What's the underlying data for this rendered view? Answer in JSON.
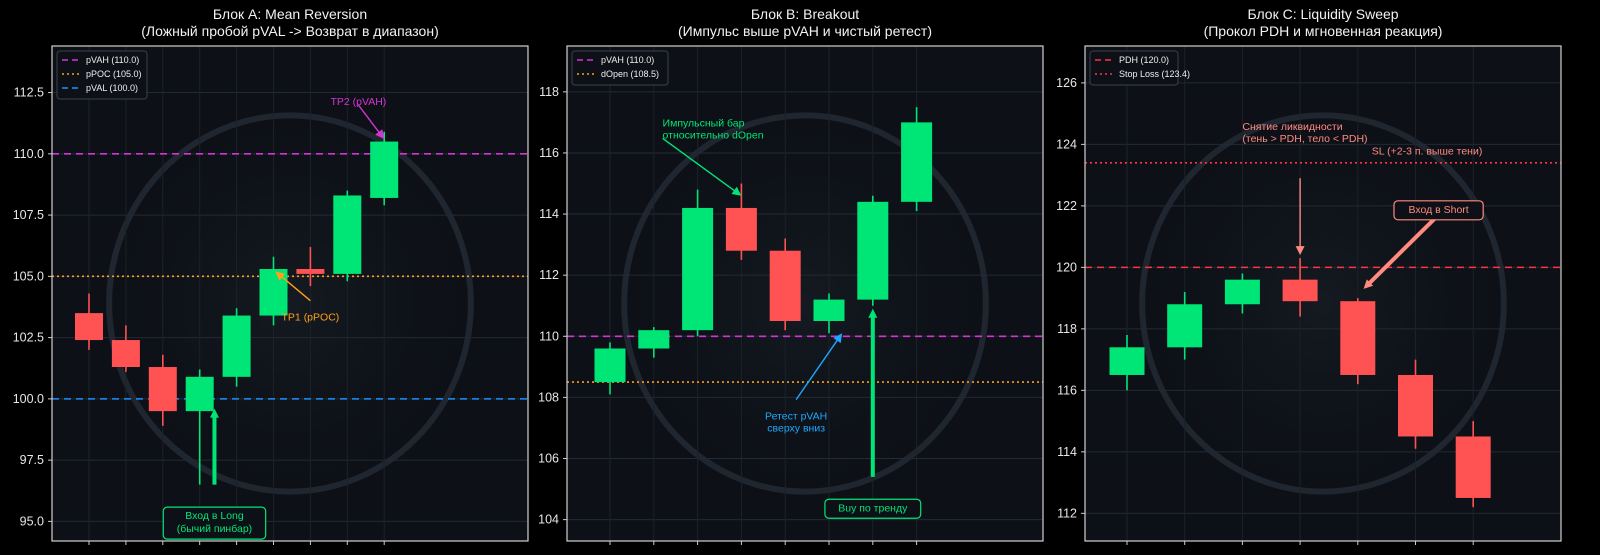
{
  "colors": {
    "up": "#00e676",
    "down": "#ff5252",
    "magenta": "#d633d6",
    "orange": "#ff9f1a",
    "blue": "#1e90ff",
    "red_level": "#ff3344",
    "plot_bg": "#0d1117"
  },
  "chart_data": [
    {
      "type": "candlestick",
      "title": "Блок A: Mean Reversion",
      "subtitle": "(Ложный пробой pVAL -> Возврат в диапазон)",
      "ylim": [
        94.2,
        114.4
      ],
      "yticks": [
        95.0,
        97.5,
        100.0,
        102.5,
        105.0,
        107.5,
        110.0,
        112.5
      ],
      "ytick_labels": [
        "95.0",
        "97.5",
        "100.0",
        "102.5",
        "105.0",
        "107.5",
        "110.0",
        "112.5"
      ],
      "grid": true,
      "legend_position": "top-left",
      "levels": [
        {
          "name": "pVAH (110.0)",
          "value": 110.0,
          "color": "#d633d6",
          "style": "dashed"
        },
        {
          "name": "pPOC (105.0)",
          "value": 105.0,
          "color": "#ff9f1a",
          "style": "dotted"
        },
        {
          "name": "pVAL (100.0)",
          "value": 100.0,
          "color": "#1e90ff",
          "style": "dashed"
        }
      ],
      "candles": [
        {
          "open": 103.5,
          "high": 104.3,
          "low": 102.0,
          "close": 102.4
        },
        {
          "open": 102.4,
          "high": 103.0,
          "low": 101.1,
          "close": 101.3
        },
        {
          "open": 101.3,
          "high": 101.8,
          "low": 98.9,
          "close": 99.5
        },
        {
          "open": 99.5,
          "high": 101.2,
          "low": 96.5,
          "close": 100.9
        },
        {
          "open": 100.9,
          "high": 103.7,
          "low": 100.5,
          "close": 103.4
        },
        {
          "open": 103.4,
          "high": 105.8,
          "low": 103.0,
          "close": 105.3
        },
        {
          "open": 105.3,
          "high": 106.2,
          "low": 104.6,
          "close": 105.1
        },
        {
          "open": 105.1,
          "high": 108.5,
          "low": 104.8,
          "close": 108.3
        },
        {
          "open": 108.2,
          "high": 110.9,
          "low": 107.9,
          "close": 110.5
        }
      ],
      "annotations": [
        {
          "id": "tp2",
          "text": [
            "TP2 (pVAH)"
          ],
          "color": "#d633d6",
          "text_x": 7.3,
          "text_y": 112.4,
          "arrow_to": [
            8.0,
            110.6
          ],
          "boxed": false
        },
        {
          "id": "tp1",
          "text": [
            "TP1 (pPOC)"
          ],
          "color": "#ff9f1a",
          "text_x": 6.0,
          "text_y": 103.6,
          "arrow_to": [
            5.05,
            105.2
          ],
          "boxed": false
        },
        {
          "id": "long",
          "text": [
            "Вход в Long",
            "(бычий пинбар)"
          ],
          "color": "#00e676",
          "text_x": 3.4,
          "text_y": 95.5,
          "arrow_from": [
            3.4,
            96.5
          ],
          "arrow_to": [
            3.4,
            99.6
          ],
          "boxed": true
        }
      ]
    },
    {
      "type": "candlestick",
      "title": "Блок B: Breakout",
      "subtitle": "(Импульс выше pVAH и чистый ретест)",
      "ylim": [
        103.3,
        119.5
      ],
      "yticks": [
        104,
        106,
        108,
        110,
        112,
        114,
        116,
        118
      ],
      "ytick_labels": [
        "104",
        "106",
        "108",
        "110",
        "112",
        "114",
        "116",
        "118"
      ],
      "grid": true,
      "legend_position": "top-left",
      "levels": [
        {
          "name": "pVAH (110.0)",
          "value": 110.0,
          "color": "#d633d6",
          "style": "dashed"
        },
        {
          "name": "dOpen (108.5)",
          "value": 108.5,
          "color": "#ff9f1a",
          "style": "dotted"
        }
      ],
      "candles": [
        {
          "open": 108.5,
          "high": 109.8,
          "low": 108.1,
          "close": 109.6
        },
        {
          "open": 109.6,
          "high": 110.3,
          "low": 109.3,
          "close": 110.2
        },
        {
          "open": 110.2,
          "high": 114.8,
          "low": 110.0,
          "close": 114.2
        },
        {
          "open": 114.2,
          "high": 115.0,
          "low": 112.5,
          "close": 112.8
        },
        {
          "open": 112.8,
          "high": 113.2,
          "low": 110.2,
          "close": 110.5
        },
        {
          "open": 110.5,
          "high": 111.4,
          "low": 110.1,
          "close": 111.2
        },
        {
          "open": 111.2,
          "high": 114.6,
          "low": 111.0,
          "close": 114.4
        },
        {
          "open": 114.4,
          "high": 117.5,
          "low": 114.1,
          "close": 117.0
        }
      ],
      "annotations": [
        {
          "id": "impulse",
          "text": [
            "Импульсный бар",
            "относительно dOpen"
          ],
          "color": "#00e676",
          "text_x": 1.2,
          "text_y": 117.2,
          "arrow_to": [
            3.0,
            114.6
          ],
          "boxed": false
        },
        {
          "id": "retest",
          "text": [
            "Ретест pVAH",
            "сверху вниз"
          ],
          "color": "#1ea7ff",
          "text_x": 4.25,
          "text_y": 107.6,
          "arrow_to": [
            5.3,
            110.1
          ],
          "boxed": false
        },
        {
          "id": "buy",
          "text": [
            "Buy по тренду"
          ],
          "color": "#00e676",
          "text_x": 6.0,
          "text_y": 104.6,
          "arrow_from": [
            6.0,
            105.4
          ],
          "arrow_to": [
            6.0,
            110.9
          ],
          "boxed": true
        }
      ]
    },
    {
      "type": "candlestick",
      "title": "Блок C: Liquidity Sweep",
      "subtitle": "(Прокол PDH и мгновенная реакция)",
      "ylim": [
        111.1,
        127.2
      ],
      "yticks": [
        112,
        114,
        116,
        118,
        120,
        122,
        124,
        126
      ],
      "ytick_labels": [
        "112",
        "114",
        "116",
        "118",
        "120",
        "122",
        "124",
        "126"
      ],
      "grid": true,
      "legend_position": "top-left",
      "levels": [
        {
          "name": "PDH (120.0)",
          "value": 120.0,
          "color": "#ff3344",
          "style": "dashed"
        },
        {
          "name": "Stop Loss (123.4)",
          "value": 123.4,
          "color": "#ff3344",
          "style": "dotted"
        }
      ],
      "candles": [
        {
          "open": 116.5,
          "high": 117.8,
          "low": 116.0,
          "close": 117.4
        },
        {
          "open": 117.4,
          "high": 119.2,
          "low": 117.0,
          "close": 118.8
        },
        {
          "open": 118.8,
          "high": 119.8,
          "low": 118.5,
          "close": 119.6
        },
        {
          "open": 119.6,
          "high": 120.3,
          "low": 118.4,
          "close": 118.9
        },
        {
          "open": 118.9,
          "high": 119.0,
          "low": 116.2,
          "close": 116.5
        },
        {
          "open": 116.5,
          "high": 117.0,
          "low": 114.1,
          "close": 114.5
        },
        {
          "open": 114.5,
          "high": 115.0,
          "low": 112.2,
          "close": 112.5
        }
      ],
      "annotations": [
        {
          "id": "sweep",
          "text": [
            "Снятие ликвидности",
            "(тень > PDH, тело < PDH)"
          ],
          "color": "#ff8a80",
          "text_x": 2.0,
          "text_y": 124.8,
          "arrow_from": [
            3.0,
            122.9
          ],
          "arrow_to": [
            3.0,
            120.4
          ],
          "boxed": false
        },
        {
          "id": "sl",
          "text": [
            "SL (+2-3 п. выше тени)"
          ],
          "color": "#ff8a80",
          "text_x": 5.2,
          "text_y": 124.0,
          "boxed": false
        },
        {
          "id": "short",
          "text": [
            "Вход в Short"
          ],
          "color": "#ff8a80",
          "text_x": 5.4,
          "text_y": 122.1,
          "arrow_to": [
            4.1,
            119.3
          ],
          "boxed": true
        }
      ]
    }
  ]
}
